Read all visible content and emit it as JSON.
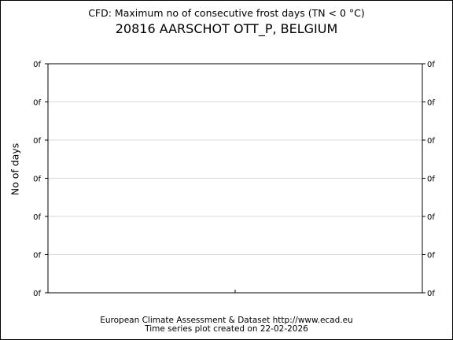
{
  "chart_data": {
    "type": "line",
    "title": "20816 AARSCHOT OTT_P, BELGIUM",
    "subtitle": "CFD: Maximum no of consecutive frost days (TN < 0 °C)",
    "xlabel": "",
    "ylabel": "No of days",
    "y_tick_labels": [
      "0f",
      "0f",
      "0f",
      "0f",
      "0f",
      "0f",
      "0f"
    ],
    "y_tick_labels_right": [
      "0f",
      "0f",
      "0f",
      "0f",
      "0f",
      "0f",
      "0f"
    ],
    "x_tick_labels": [],
    "grid": true,
    "series": [],
    "footer": [
      "European Climate Assessment & Dataset  http://www.ecad.eu",
      "Time series plot created on 22-02-2026"
    ]
  }
}
